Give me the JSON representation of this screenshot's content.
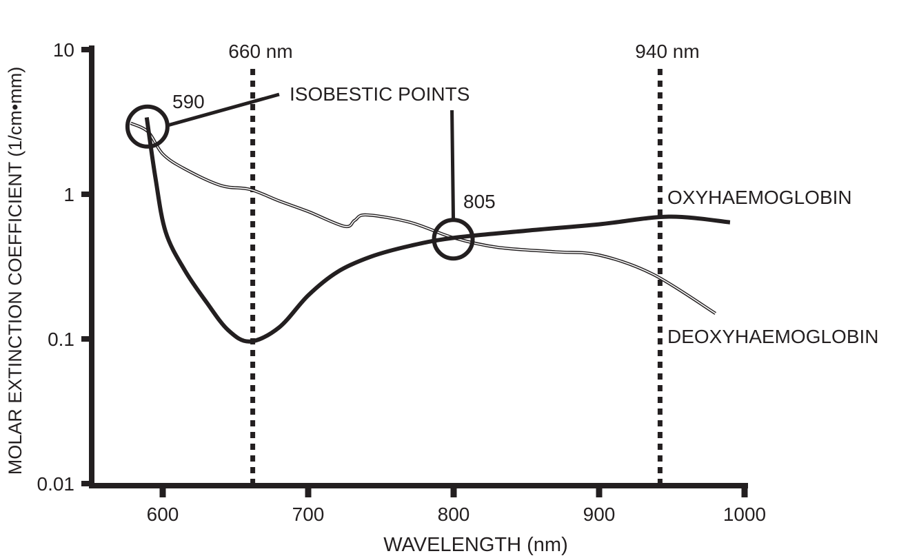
{
  "chart_data": {
    "type": "line",
    "title": "",
    "xlabel": "WAVELENGTH (nm)",
    "ylabel": "MOLAR EXTINCTION COEFFICIENT (1/cm•mm)",
    "xscale": "linear",
    "yscale": "log",
    "xlim": [
      550,
      1000
    ],
    "ylim": [
      0.01,
      10
    ],
    "x_ticks": [
      600,
      700,
      800,
      900,
      1000
    ],
    "x_tick_labels": [
      "600",
      "700",
      "800",
      "900",
      "1000"
    ],
    "y_ticks": [
      10,
      1,
      0.1,
      0.01
    ],
    "y_tick_labels": [
      "10",
      "1",
      "0.1",
      "0.01"
    ],
    "grid": false,
    "series": [
      {
        "name": "OXYHAEMOGLOBIN",
        "style": "thick",
        "x": [
          589,
          595,
          602,
          615,
          630,
          645,
          660,
          680,
          700,
          720,
          743,
          770,
          800,
          850,
          900,
          948,
          990
        ],
        "y": [
          3.4,
          1.3,
          0.55,
          0.3,
          0.18,
          0.115,
          0.096,
          0.12,
          0.2,
          0.29,
          0.37,
          0.44,
          0.5,
          0.56,
          0.62,
          0.7,
          0.64
        ]
      },
      {
        "name": "DEOXYHAEMOGLOBIN",
        "style": "double",
        "x": [
          578,
          590,
          600,
          615,
          640,
          660,
          680,
          700,
          725,
          732,
          740,
          770,
          800,
          830,
          870,
          900,
          937,
          980
        ],
        "y": [
          3.1,
          2.7,
          1.9,
          1.5,
          1.15,
          1.08,
          0.9,
          0.76,
          0.6,
          0.66,
          0.72,
          0.64,
          0.5,
          0.43,
          0.4,
          0.38,
          0.28,
          0.15
        ]
      }
    ],
    "vertical_markers": [
      {
        "x": 660,
        "label": "660 nm"
      },
      {
        "x": 940,
        "label": "940 nm"
      }
    ],
    "annotations": {
      "isobestic_label": "ISOBESTIC POINTS",
      "points": [
        {
          "x": 590,
          "y": 3.0,
          "label": "590"
        },
        {
          "x": 805,
          "y": 0.5,
          "label": "805"
        }
      ]
    },
    "legend": "inline-right"
  }
}
